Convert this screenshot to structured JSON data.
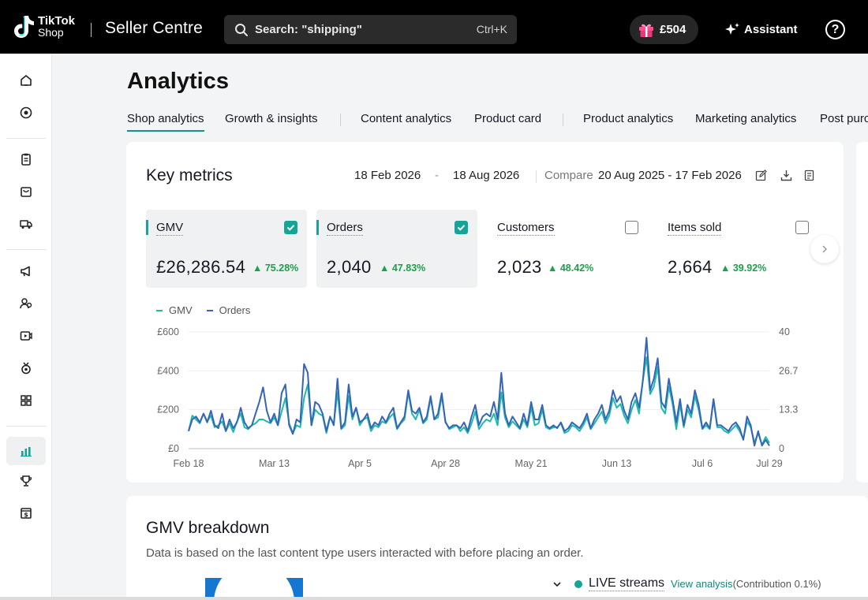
{
  "header": {
    "logo_line1": "TikTok",
    "logo_line2": "Shop",
    "app_title": "Seller Centre",
    "search_placeholder": "Search: \"shipping\"",
    "search_shortcut": "Ctrl+K",
    "balance": "£504",
    "assistant_label": "Assistant",
    "help_label": "?"
  },
  "sidebar": {
    "items": [
      {
        "icon": "home-icon"
      },
      {
        "icon": "target-icon"
      },
      {
        "icon": "clipboard-icon"
      },
      {
        "icon": "bag-icon"
      },
      {
        "icon": "delivery-icon"
      },
      {
        "icon": "megaphone-icon"
      },
      {
        "icon": "users-icon"
      },
      {
        "icon": "video-icon"
      },
      {
        "icon": "badge-icon"
      },
      {
        "icon": "apps-icon"
      },
      {
        "icon": "analytics-icon",
        "active": true
      },
      {
        "icon": "trophy-icon"
      },
      {
        "icon": "finance-icon"
      }
    ]
  },
  "page": {
    "title": "Analytics",
    "tabs": [
      {
        "label": "Shop analytics",
        "active": true
      },
      {
        "label": "Growth & insights"
      },
      {
        "label": "Content analytics"
      },
      {
        "label": "Product card"
      },
      {
        "label": "Product analytics"
      },
      {
        "label": "Marketing analytics"
      },
      {
        "label": "Post purc"
      }
    ]
  },
  "key_metrics": {
    "title": "Key metrics",
    "date_start": "18 Feb 2026",
    "date_sep": "-",
    "date_end": "18 Aug 2026",
    "compare_label": "Compare",
    "compare_range": "20 Aug 2025 - 17 Feb 2026",
    "metrics": [
      {
        "name": "GMV",
        "value": "£26,286.54",
        "delta": "75.28%",
        "selected": true
      },
      {
        "name": "Orders",
        "value": "2,040",
        "delta": "47.83%",
        "selected": true
      },
      {
        "name": "Customers",
        "value": "2,023",
        "delta": "48.42%",
        "selected": false
      },
      {
        "name": "Items sold",
        "value": "2,664",
        "delta": "39.92%",
        "selected": false
      }
    ],
    "legend": [
      {
        "name": "GMV",
        "color": "#1dbca8"
      },
      {
        "name": "Orders",
        "color": "#3564b8"
      }
    ]
  },
  "chart_data": {
    "type": "line",
    "x_ticks": [
      "Feb 18",
      "Mar 13",
      "Apr 5",
      "Apr 28",
      "May 21",
      "Jun 13",
      "Jul 6",
      "Jul 29"
    ],
    "y_left_ticks": [
      "£600",
      "£400",
      "£200",
      "£0"
    ],
    "y_right_ticks": [
      "40",
      "26.7",
      "13.3",
      "0"
    ],
    "ylim_left": [
      0,
      600
    ],
    "ylim_right": [
      0,
      40
    ],
    "series": [
      {
        "name": "GMV",
        "axis": "left",
        "color": "#1dbca8",
        "values": [
          90,
          170,
          150,
          130,
          180,
          140,
          170,
          110,
          120,
          140,
          90,
          130,
          85,
          140,
          180,
          110,
          100,
          120,
          130,
          150,
          150,
          140,
          130,
          160,
          120,
          190,
          260,
          130,
          80,
          120,
          110,
          260,
          330,
          120,
          200,
          180,
          170,
          80,
          160,
          130,
          290,
          100,
          120,
          270,
          150,
          210,
          120,
          150,
          160,
          90,
          120,
          110,
          140,
          130,
          160,
          180,
          100,
          130,
          150,
          290,
          180,
          150,
          200,
          130,
          150,
          260,
          150,
          160,
          270,
          140,
          100,
          110,
          120,
          90,
          110,
          80,
          130,
          190,
          100,
          130,
          150,
          140,
          180,
          120,
          290,
          160,
          110,
          140,
          120,
          100,
          150,
          110,
          210,
          120,
          130,
          200,
          110,
          100,
          110,
          110,
          130,
          80,
          90,
          120,
          110,
          90,
          120,
          160,
          100,
          130,
          160,
          190,
          130,
          170,
          260,
          210,
          230,
          170,
          130,
          200,
          250,
          180,
          350,
          470,
          280,
          320,
          420,
          210,
          180,
          320,
          230,
          100,
          230,
          110,
          200,
          160,
          270,
          200,
          100,
          120,
          100,
          250,
          110,
          110,
          90,
          80,
          100,
          120,
          90,
          50,
          140,
          110,
          30,
          80,
          20,
          60,
          30
        ]
      },
      {
        "name": "Orders",
        "axis": "right",
        "color": "#3564b8",
        "values": [
          6,
          10,
          11,
          9,
          12,
          9,
          13,
          8,
          7,
          12,
          6,
          10,
          7,
          9,
          14,
          9,
          7,
          8,
          12,
          16,
          21,
          13,
          9,
          12,
          8,
          19,
          22,
          8,
          5,
          10,
          9,
          29,
          26,
          8,
          16,
          15,
          12,
          6,
          11,
          8,
          24,
          7,
          9,
          22,
          11,
          14,
          9,
          10,
          12,
          7,
          9,
          8,
          11,
          9,
          12,
          14,
          7,
          9,
          11,
          20,
          13,
          12,
          14,
          9,
          11,
          18,
          10,
          12,
          19,
          9,
          7,
          8,
          8,
          7,
          9,
          6,
          11,
          15,
          8,
          11,
          12,
          11,
          16,
          10,
          26,
          12,
          8,
          11,
          9,
          7,
          12,
          8,
          16,
          10,
          10,
          15,
          8,
          7,
          8,
          7,
          9,
          6,
          7,
          9,
          8,
          7,
          9,
          12,
          7,
          10,
          12,
          15,
          10,
          13,
          20,
          16,
          18,
          13,
          10,
          16,
          19,
          14,
          23,
          38,
          20,
          24,
          31,
          16,
          14,
          24,
          17,
          9,
          17,
          8,
          15,
          12,
          20,
          15,
          7,
          9,
          7,
          17,
          8,
          8,
          7,
          6,
          8,
          9,
          7,
          3,
          11,
          8,
          1,
          6,
          1,
          3,
          1
        ]
      }
    ]
  },
  "gmv_breakdown": {
    "title": "GMV breakdown",
    "subtitle": "Data is based on the last content type users interacted with before placing an order.",
    "rows": [
      {
        "label": "LIVE streams",
        "link": "View analysis",
        "contribution": "(Contribution 0.1%)",
        "color": "#15a497"
      }
    ]
  }
}
